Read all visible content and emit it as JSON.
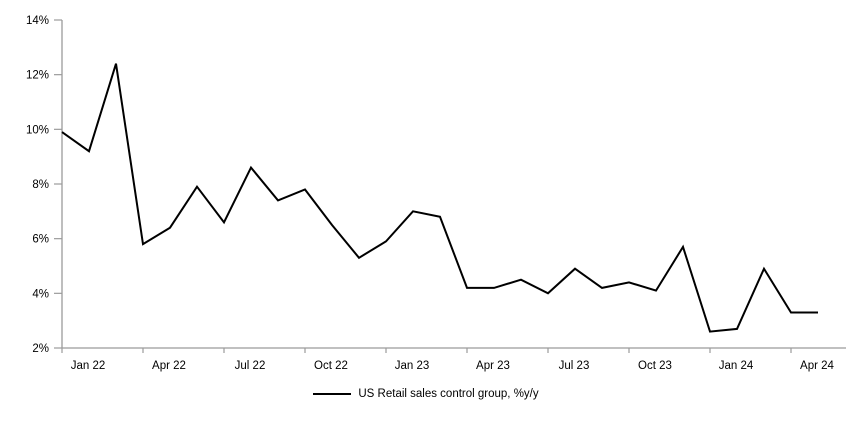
{
  "chart_data": {
    "type": "line",
    "title": "",
    "series": [
      {
        "name": "US Retail sales control group, %y/y",
        "values": [
          9.9,
          9.2,
          12.4,
          5.8,
          6.4,
          7.9,
          6.6,
          8.6,
          7.4,
          7.8,
          6.5,
          5.3,
          5.9,
          7.0,
          6.8,
          4.2,
          4.2,
          4.5,
          4.0,
          4.9,
          4.2,
          4.4,
          4.1,
          5.7,
          2.6,
          2.7,
          4.9,
          3.3,
          3.3
        ]
      }
    ],
    "x": [
      "Jan 22",
      "Feb 22",
      "Mar 22",
      "Apr 22",
      "May 22",
      "Jun 22",
      "Jul 22",
      "Aug 22",
      "Sep 22",
      "Oct 22",
      "Nov 22",
      "Dec 22",
      "Jan 23",
      "Feb 23",
      "Mar 23",
      "Apr 23",
      "May 23",
      "Jun 23",
      "Jul 23",
      "Aug 23",
      "Sep 23",
      "Oct 23",
      "Nov 23",
      "Dec 23",
      "Jan 24",
      "Feb 24",
      "Mar 24",
      "Apr 24",
      "May 24"
    ],
    "xticklabels": [
      "Jan 22",
      "Apr 22",
      "Jul 22",
      "Oct 22",
      "Jan 23",
      "Apr 23",
      "Jul 23",
      "Oct 23",
      "Jan 24",
      "Apr 24"
    ],
    "yticklabels": [
      "14%",
      "12%",
      "10%",
      "8%",
      "6%",
      "4%",
      "2%"
    ],
    "ylim": [
      2,
      14
    ],
    "ytick_step": 2,
    "grid": false,
    "legend_position": "bottom",
    "line_color": "#000000",
    "axis_color": "#9b9b9b"
  },
  "legend": {
    "label": "US Retail sales control group, %y/y"
  }
}
